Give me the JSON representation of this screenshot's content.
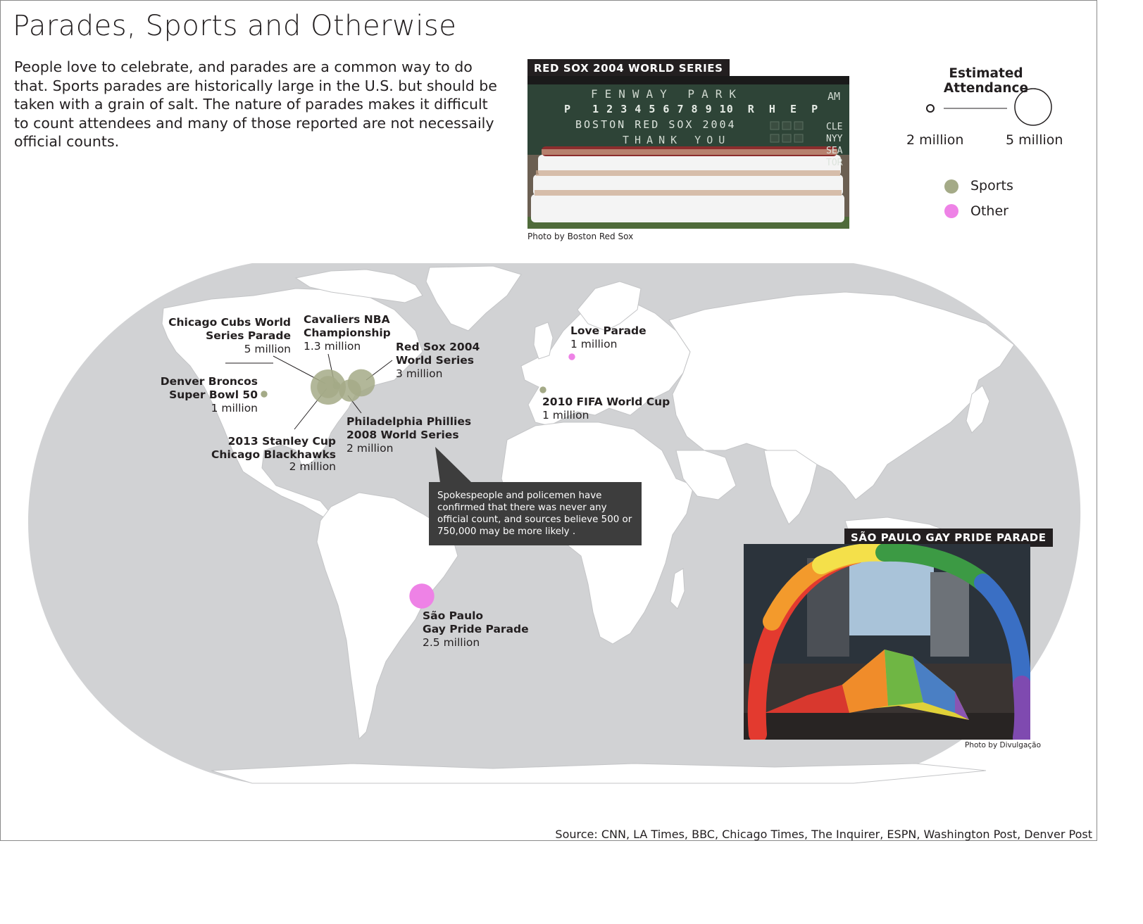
{
  "title": "Parades, Sports and Otherwise",
  "intro": "People love to celebrate, and parades are a common way to do that. Sports parades are historically large in the U.S. but should be taken with a grain of salt. The nature of parades makes it difficult to count attendees and many of those reported are not necessaily official counts.",
  "photos": {
    "redsox": {
      "label": "RED SOX 2004 WORLD SERIES",
      "credit": "Photo by Boston Red Sox",
      "scoreboard": {
        "line1": "FENWAY  PARK",
        "am": "AM",
        "line2": "P   1 2 3 4 5 6 7 8 9 10  R  H  E  P",
        "line3": "BOSTON RED SOX 2004",
        "line4": "THANK  YOU",
        "side": [
          "CLE",
          "NYY",
          "SEA",
          "TOR"
        ]
      }
    },
    "saopaulo": {
      "label": "SÃO PAULO GAY PRIDE PARADE",
      "credit": "Photo by Divulgação"
    }
  },
  "legend": {
    "title": "Estimated Attendance",
    "small_label": "2 million",
    "large_label": "5 million",
    "categories": [
      {
        "name": "Sports",
        "color": "#a4aa87"
      },
      {
        "name": "Other",
        "color": "#ee82e6"
      }
    ]
  },
  "events": [
    {
      "name_lines": [
        "Chicago Cubs World",
        "Series Parade"
      ],
      "attendance": "5 million",
      "category": "Sports",
      "value_millions": 5
    },
    {
      "name_lines": [
        "Cavaliers NBA",
        "Championship"
      ],
      "attendance": "1.3 million",
      "category": "Sports",
      "value_millions": 1.3
    },
    {
      "name_lines": [
        "Red Sox 2004",
        "World Series"
      ],
      "attendance": "3 million",
      "category": "Sports",
      "value_millions": 3
    },
    {
      "name_lines": [
        "Denver Broncos",
        "Super Bowl 50"
      ],
      "attendance": "1 million",
      "category": "Sports",
      "value_millions": 1
    },
    {
      "name_lines": [
        "Philadelphia Phillies",
        "2008 World Series"
      ],
      "attendance": "2 million",
      "category": "Sports",
      "value_millions": 2
    },
    {
      "name_lines": [
        "2013 Stanley Cup",
        "Chicago Blackhawks"
      ],
      "attendance": "2 million",
      "category": "Sports",
      "value_millions": 2
    },
    {
      "name_lines": [
        "Love Parade"
      ],
      "attendance": "1 million",
      "category": "Other",
      "value_millions": 1
    },
    {
      "name_lines": [
        "2010 FIFA World Cup"
      ],
      "attendance": "1 million",
      "category": "Sports",
      "value_millions": 1
    },
    {
      "name_lines": [
        "São Paulo",
        "Gay Pride Parade"
      ],
      "attendance": "2.5 million",
      "category": "Other",
      "value_millions": 2.5
    }
  ],
  "callout": "Spokespeople and policemen have confirmed that there was never any official count, and sources believe 500 or 750,000 may be more likely .",
  "source": "Source: CNN, LA Times, BBC, Chicago Times, The Inquirer, ESPN, Washington Post, Denver Post",
  "colors": {
    "ocean": "#d1d2d4",
    "land": "#ffffff",
    "sports": "#a4aa87",
    "other": "#ee82e6",
    "callout": "#3d3d3d"
  }
}
